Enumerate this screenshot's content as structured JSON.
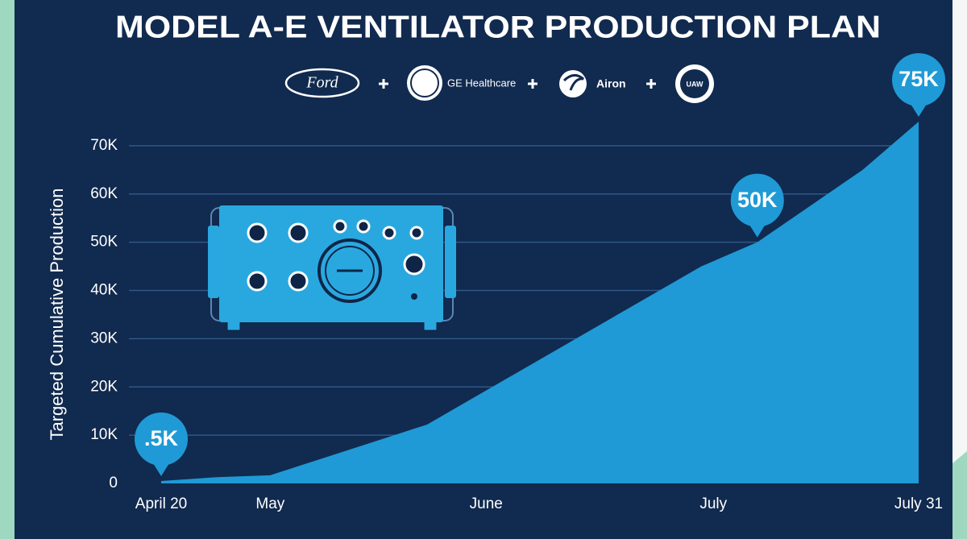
{
  "chart_data": {
    "type": "area",
    "title": "MODEL A-E VENTILATOR PRODUCTION PLAN",
    "partners": [
      "Ford",
      "GE Healthcare",
      "Airon",
      "UAW"
    ],
    "y_label": "Targeted Cumulative Production",
    "x": [
      0,
      7.4,
      14.4,
      35.1,
      71.3,
      78.7,
      92.6,
      100
    ],
    "values": [
      500,
      1300,
      1700,
      12200,
      45000,
      50000,
      65000,
      75000
    ],
    "value_labels": [
      ".5K",
      null,
      null,
      null,
      null,
      "50K",
      null,
      "75K"
    ],
    "color": "#1f9ad6",
    "xlim": [
      0,
      100
    ],
    "xticks": [
      {
        "value": 0,
        "label": "April 20"
      },
      {
        "value": 14.4,
        "label": "May"
      },
      {
        "value": 42.9,
        "label": "June"
      },
      {
        "value": 72.9,
        "label": "July"
      },
      {
        "value": 100,
        "label": "July 31"
      }
    ],
    "ylim": [
      0,
      75000
    ],
    "yticks": [
      0,
      {
        "value": 10000,
        "label": "10K"
      },
      {
        "value": 20000,
        "label": "20K"
      },
      {
        "value": 30000,
        "label": "30K"
      },
      {
        "value": 40000,
        "label": "40K"
      },
      {
        "value": 50000,
        "label": "50K"
      },
      {
        "value": 60000,
        "label": "60K"
      },
      {
        "value": 70000,
        "label": "70K"
      }
    ],
    "grid": true
  }
}
